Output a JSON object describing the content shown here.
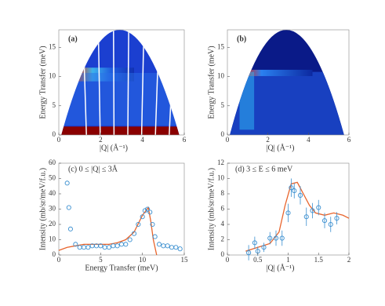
{
  "chart_data": [
    {
      "type": "heatmap",
      "panel_label": "(a)",
      "xlabel": "|Q| (Å⁻¹)",
      "ylabel": "Energy Transfer (meV)",
      "xlim": [
        0,
        6
      ],
      "ylim": [
        0,
        18
      ],
      "xticks": [
        0,
        2,
        4,
        6
      ],
      "yticks": [
        0,
        5,
        10,
        15
      ]
    },
    {
      "type": "heatmap",
      "panel_label": "(b)",
      "xlabel": "|Q| (Å⁻¹)",
      "ylabel": "Energy Transfer (meV)",
      "xlim": [
        0,
        6
      ],
      "ylim": [
        0,
        18
      ],
      "xticks": [
        0,
        2,
        4,
        6
      ],
      "yticks": [
        0,
        5,
        10,
        15
      ]
    },
    {
      "type": "scatter",
      "annotation": "(c) 0 ≤ |Q| ≤ 3Å",
      "xlabel": "Energy Transfer (meV)",
      "ylabel": "Intensity (mb/sr/meV/f.u.)",
      "xlim": [
        0,
        15
      ],
      "ylim": [
        0,
        60
      ],
      "xticks": [
        0,
        5,
        10,
        15
      ],
      "yticks": [
        0,
        10,
        20,
        30,
        40,
        50,
        60
      ],
      "points": {
        "color": "#3a8fd0",
        "x": [
          1,
          1.2,
          1.4,
          2,
          2.5,
          3,
          3.5,
          4,
          4.5,
          5,
          5.5,
          6,
          6.5,
          7,
          7.5,
          8,
          8.5,
          9,
          9.5,
          10,
          10.3,
          10.6,
          10.9,
          11.2,
          11.5,
          12,
          12.5,
          13,
          13.5,
          14,
          14.5
        ],
        "values": [
          47,
          31,
          17,
          7,
          5,
          5,
          5,
          6,
          6,
          6,
          5,
          5,
          6,
          6,
          7,
          7,
          10,
          14,
          20,
          25,
          29,
          30,
          28,
          20,
          12,
          7,
          6,
          6,
          5,
          5,
          4
        ]
      },
      "fit": {
        "color": "#e8642c",
        "x": [
          0,
          1,
          2,
          3,
          4,
          5,
          6,
          7,
          8,
          9,
          10,
          10.7,
          11,
          11.3,
          11.7
        ],
        "values": [
          3,
          5,
          6,
          7,
          7,
          7,
          7,
          8,
          10,
          15,
          26,
          31,
          22,
          10,
          0
        ]
      }
    },
    {
      "type": "errorbar",
      "annotation": "(d) 3 ≤ E ≤ 6 meV",
      "xlabel": "|Q| (Å⁻¹)",
      "ylabel": "Intensity (mb/sr/meV/f.u.)",
      "xlim": [
        0,
        2
      ],
      "ylim": [
        0,
        12
      ],
      "xticks": [
        0,
        0.5,
        1,
        1.5,
        2
      ],
      "yticks": [
        0,
        2,
        4,
        6,
        8,
        10,
        12
      ],
      "points": {
        "color": "#3a8fd0",
        "x": [
          0.35,
          0.45,
          0.5,
          0.6,
          0.7,
          0.8,
          0.9,
          1.0,
          1.05,
          1.1,
          1.2,
          1.3,
          1.4,
          1.5,
          1.6,
          1.7,
          1.8
        ],
        "values": [
          0.3,
          1.6,
          0.5,
          1.0,
          2.2,
          2.2,
          2.2,
          5.5,
          8.8,
          8.4,
          7.8,
          5.0,
          5.8,
          6.2,
          4.5,
          4.0,
          4.8
        ],
        "errors": [
          1,
          0.8,
          0.6,
          0.6,
          0.8,
          1,
          1,
          1.2,
          1.2,
          1,
          1.2,
          1.2,
          1,
          1,
          1,
          1,
          0.8
        ]
      },
      "fit": {
        "color": "#e8642c",
        "x": [
          0.3,
          0.5,
          0.7,
          0.85,
          0.95,
          1.05,
          1.15,
          1.25,
          1.35,
          1.45,
          1.6,
          1.75,
          1.9,
          2
        ],
        "values": [
          0.5,
          1,
          1.5,
          3,
          6.5,
          9.3,
          9.5,
          8,
          6.5,
          5.5,
          5.2,
          5.5,
          5.2,
          4.8
        ]
      }
    }
  ]
}
